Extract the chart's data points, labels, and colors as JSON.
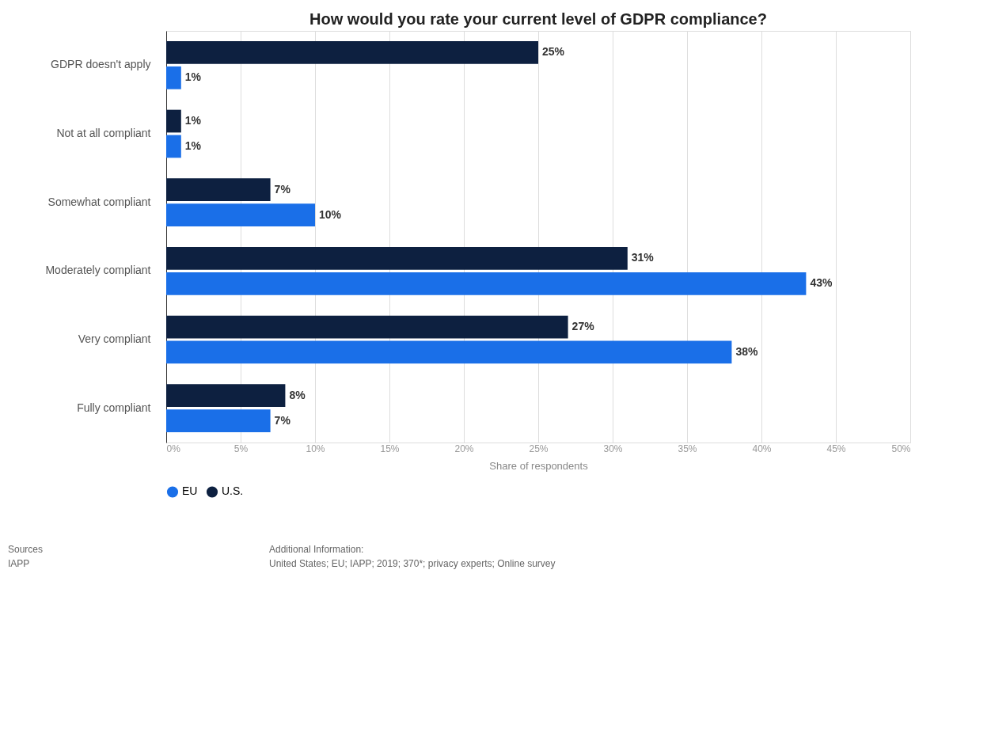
{
  "chart_data": {
    "type": "bar",
    "orientation": "horizontal",
    "title": "How would you rate your current level of GDPR compliance?",
    "xlabel": "Share of respondents",
    "categories": [
      "GDPR doesn't apply",
      "Not at all compliant",
      "Somewhat compliant",
      "Moderately compliant",
      "Very compliant",
      "Fully compliant"
    ],
    "series": [
      {
        "name": "EU",
        "color": "#1a6fe8",
        "values": [
          1,
          1,
          10,
          43,
          38,
          7
        ],
        "value_labels": [
          "1%",
          "1%",
          "10%",
          "43%",
          "38%",
          "7%"
        ]
      },
      {
        "name": "U.S.",
        "color": "#0d2040",
        "values": [
          25,
          1,
          7,
          31,
          27,
          8
        ],
        "value_labels": [
          "25%",
          "1%",
          "7%",
          "31%",
          "27%",
          "8%"
        ]
      }
    ],
    "xlim": [
      0,
      50
    ],
    "xticks": [
      {
        "value": 0,
        "label": "0%"
      },
      {
        "value": 5,
        "label": "5%"
      },
      {
        "value": 10,
        "label": "10%"
      },
      {
        "value": 15,
        "label": "15%"
      },
      {
        "value": 20,
        "label": "20%"
      },
      {
        "value": 25,
        "label": "25%"
      },
      {
        "value": 30,
        "label": "30%"
      },
      {
        "value": 35,
        "label": "35%"
      },
      {
        "value": 40,
        "label": "40%"
      },
      {
        "value": 45,
        "label": "45%"
      },
      {
        "value": 50,
        "label": "50%"
      }
    ],
    "grid": "x",
    "legend": "bottom",
    "annotations": [
      "Sources",
      "IAPP",
      "Additional Information:",
      "United States; EU; IAPP; 2019; 370*; privacy experts; Online survey"
    ]
  }
}
